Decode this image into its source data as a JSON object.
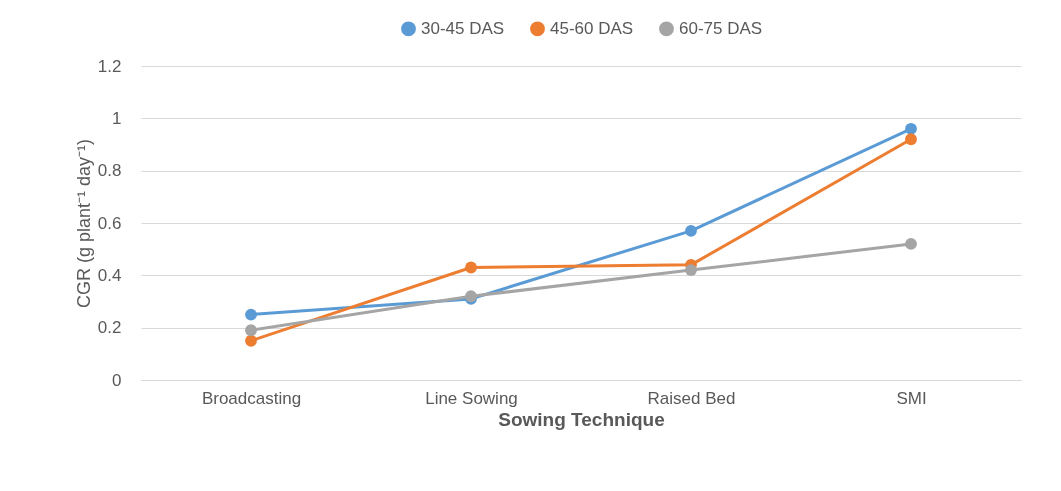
{
  "chart_data": {
    "type": "line",
    "xlabel": "Sowing Technique",
    "ylabel": "CGR (g plant⁻¹ day⁻¹)",
    "categories": [
      "Broadcasting",
      "Line Sowing",
      "Raised Bed",
      "SMI"
    ],
    "series": [
      {
        "name": "30-45 DAS",
        "color": "#5b9bd5",
        "values": [
          0.25,
          0.31,
          0.57,
          0.96
        ]
      },
      {
        "name": "45-60 DAS",
        "color": "#ed7d31",
        "values": [
          0.15,
          0.43,
          0.44,
          0.92
        ]
      },
      {
        "name": "60-75 DAS",
        "color": "#a5a5a5",
        "values": [
          0.19,
          0.32,
          0.42,
          0.52
        ]
      }
    ],
    "ylim": [
      0,
      1.2
    ],
    "yticks": [
      0,
      0.2,
      0.4,
      0.6,
      0.8,
      1,
      1.2
    ],
    "grid": "y",
    "legend": "top",
    "marker": "circle",
    "line_style": "solid"
  }
}
